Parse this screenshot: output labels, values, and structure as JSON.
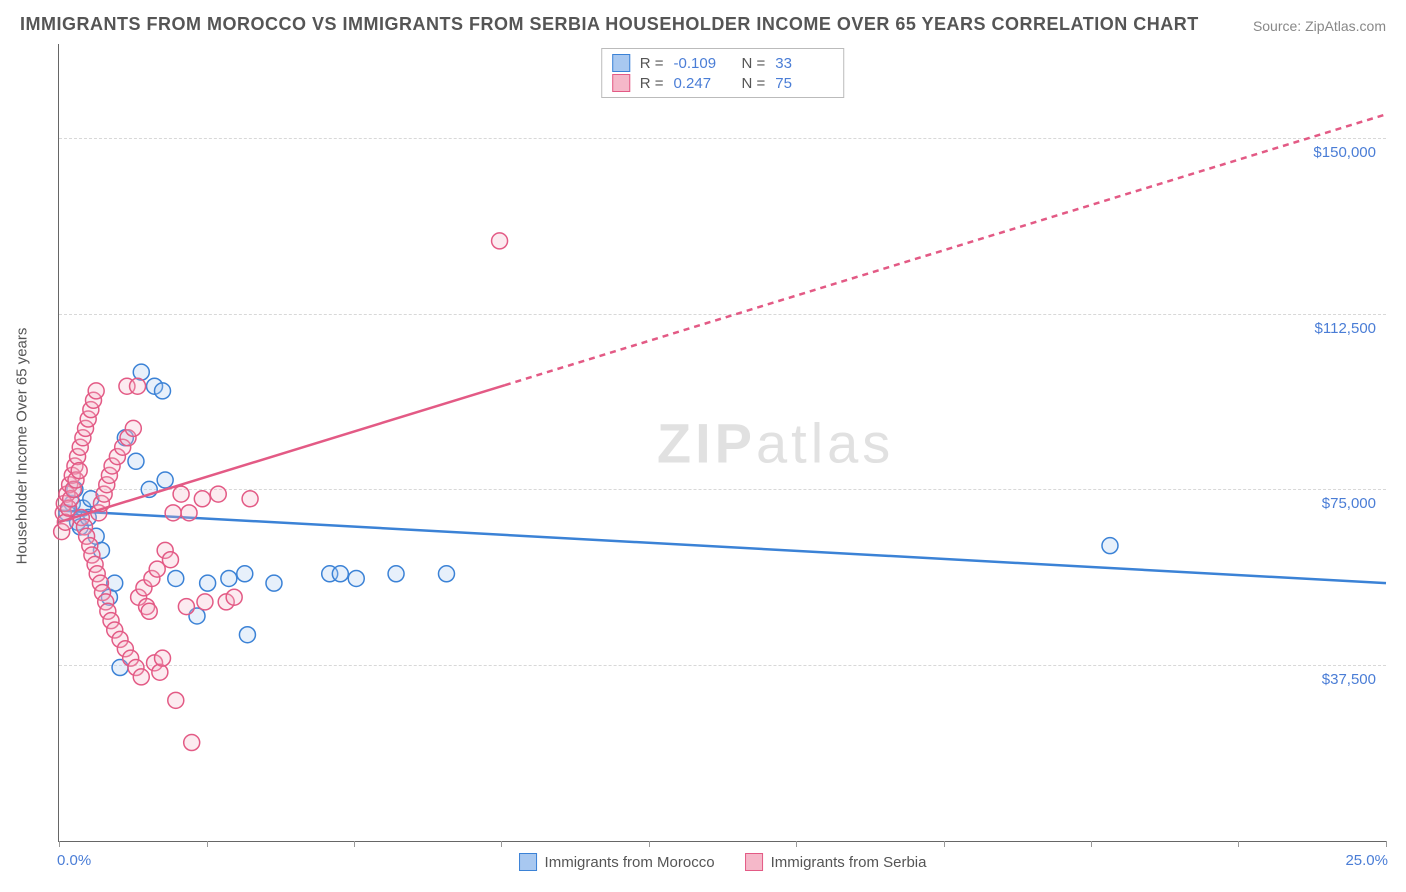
{
  "title": "IMMIGRANTS FROM MOROCCO VS IMMIGRANTS FROM SERBIA HOUSEHOLDER INCOME OVER 65 YEARS CORRELATION CHART",
  "source": "Source: ZipAtlas.com",
  "ylabel": "Householder Income Over 65 years",
  "watermark_a": "ZIP",
  "watermark_b": "atlas",
  "chart": {
    "type": "scatter",
    "xlim": [
      0,
      25
    ],
    "ylim": [
      0,
      170000
    ],
    "x_tick_positions": [
      0,
      2.78,
      5.56,
      8.33,
      11.11,
      13.89,
      16.67,
      19.44,
      22.22,
      25
    ],
    "x_min_label": "0.0%",
    "x_max_label": "25.0%",
    "y_gridlines": [
      {
        "value": 37500,
        "label": "$37,500"
      },
      {
        "value": 75000,
        "label": "$75,000"
      },
      {
        "value": 112500,
        "label": "$112,500"
      },
      {
        "value": 150000,
        "label": "$150,000"
      }
    ],
    "background_color": "#ffffff",
    "grid_color": "#d8d8d8",
    "axis_color": "#666666",
    "title_color": "#555555",
    "title_fontsize": 18,
    "label_fontsize": 15,
    "tick_label_color": "#4a7dd6",
    "marker_radius": 8,
    "marker_fill_opacity": 0.28,
    "marker_stroke_width": 1.5,
    "trend_line_width": 2.5,
    "trend_dash": "6,5"
  },
  "series": [
    {
      "id": "morocco",
      "label": "Immigrants from Morocco",
      "color": "#6ca4e8",
      "stroke": "#3b82d6",
      "fill": "#a8c8f0",
      "R": "-0.109",
      "N": "33",
      "trend": {
        "x1": 0,
        "y1": 70500,
        "x2": 25,
        "y2": 55000,
        "solid_until_x": 25
      },
      "points": [
        [
          0.15,
          70000
        ],
        [
          0.25,
          72000
        ],
        [
          0.35,
          68000
        ],
        [
          0.3,
          75000
        ],
        [
          0.4,
          67000
        ],
        [
          0.45,
          71000
        ],
        [
          0.55,
          69000
        ],
        [
          0.6,
          73000
        ],
        [
          0.7,
          65000
        ],
        [
          0.8,
          62000
        ],
        [
          0.95,
          52000
        ],
        [
          1.05,
          55000
        ],
        [
          1.15,
          37000
        ],
        [
          1.25,
          86000
        ],
        [
          1.45,
          81000
        ],
        [
          1.55,
          100000
        ],
        [
          1.7,
          75000
        ],
        [
          1.8,
          97000
        ],
        [
          1.95,
          96000
        ],
        [
          2.0,
          77000
        ],
        [
          2.2,
          56000
        ],
        [
          2.6,
          48000
        ],
        [
          2.8,
          55000
        ],
        [
          3.2,
          56000
        ],
        [
          3.5,
          57000
        ],
        [
          3.55,
          44000
        ],
        [
          4.05,
          55000
        ],
        [
          5.1,
          57000
        ],
        [
          5.3,
          57000
        ],
        [
          5.6,
          56000
        ],
        [
          6.35,
          57000
        ],
        [
          7.3,
          57000
        ],
        [
          19.8,
          63000
        ]
      ]
    },
    {
      "id": "serbia",
      "label": "Immigrants from Serbia",
      "color": "#e890aa",
      "stroke": "#e35a85",
      "fill": "#f5b8c9",
      "R": "0.247",
      "N": "75",
      "trend": {
        "x1": 0,
        "y1": 68000,
        "x2": 25,
        "y2": 155000,
        "solid_until_x": 8.4
      },
      "points": [
        [
          0.05,
          66000
        ],
        [
          0.08,
          70000
        ],
        [
          0.1,
          72000
        ],
        [
          0.12,
          68000
        ],
        [
          0.15,
          74000
        ],
        [
          0.18,
          71000
        ],
        [
          0.2,
          76000
        ],
        [
          0.22,
          73000
        ],
        [
          0.25,
          78000
        ],
        [
          0.27,
          75000
        ],
        [
          0.3,
          80000
        ],
        [
          0.32,
          77000
        ],
        [
          0.35,
          82000
        ],
        [
          0.38,
          79000
        ],
        [
          0.4,
          84000
        ],
        [
          0.42,
          69000
        ],
        [
          0.45,
          86000
        ],
        [
          0.48,
          67000
        ],
        [
          0.5,
          88000
        ],
        [
          0.52,
          65000
        ],
        [
          0.55,
          90000
        ],
        [
          0.58,
          63000
        ],
        [
          0.6,
          92000
        ],
        [
          0.62,
          61000
        ],
        [
          0.65,
          94000
        ],
        [
          0.68,
          59000
        ],
        [
          0.7,
          96000
        ],
        [
          0.72,
          57000
        ],
        [
          0.75,
          70000
        ],
        [
          0.78,
          55000
        ],
        [
          0.8,
          72000
        ],
        [
          0.82,
          53000
        ],
        [
          0.85,
          74000
        ],
        [
          0.88,
          51000
        ],
        [
          0.9,
          76000
        ],
        [
          0.92,
          49000
        ],
        [
          0.95,
          78000
        ],
        [
          0.98,
          47000
        ],
        [
          1.0,
          80000
        ],
        [
          1.05,
          45000
        ],
        [
          1.1,
          82000
        ],
        [
          1.15,
          43000
        ],
        [
          1.2,
          84000
        ],
        [
          1.25,
          41000
        ],
        [
          1.28,
          97000
        ],
        [
          1.3,
          86000
        ],
        [
          1.35,
          39000
        ],
        [
          1.4,
          88000
        ],
        [
          1.45,
          37000
        ],
        [
          1.48,
          97000
        ],
        [
          1.5,
          52000
        ],
        [
          1.55,
          35000
        ],
        [
          1.6,
          54000
        ],
        [
          1.65,
          50000
        ],
        [
          1.7,
          49000
        ],
        [
          1.75,
          56000
        ],
        [
          1.8,
          38000
        ],
        [
          1.85,
          58000
        ],
        [
          1.9,
          36000
        ],
        [
          1.95,
          39000
        ],
        [
          2.0,
          62000
        ],
        [
          2.1,
          60000
        ],
        [
          2.15,
          70000
        ],
        [
          2.2,
          30000
        ],
        [
          2.3,
          74000
        ],
        [
          2.4,
          50000
        ],
        [
          2.45,
          70000
        ],
        [
          2.5,
          21000
        ],
        [
          2.7,
          73000
        ],
        [
          2.75,
          51000
        ],
        [
          3.0,
          74000
        ],
        [
          3.15,
          51000
        ],
        [
          3.3,
          52000
        ],
        [
          3.6,
          73000
        ],
        [
          8.3,
          128000
        ]
      ]
    }
  ],
  "stat_legend_labels": {
    "R": "R =",
    "N": "N ="
  },
  "legend_swatch": {
    "size": 18,
    "border_width": 1.5
  }
}
